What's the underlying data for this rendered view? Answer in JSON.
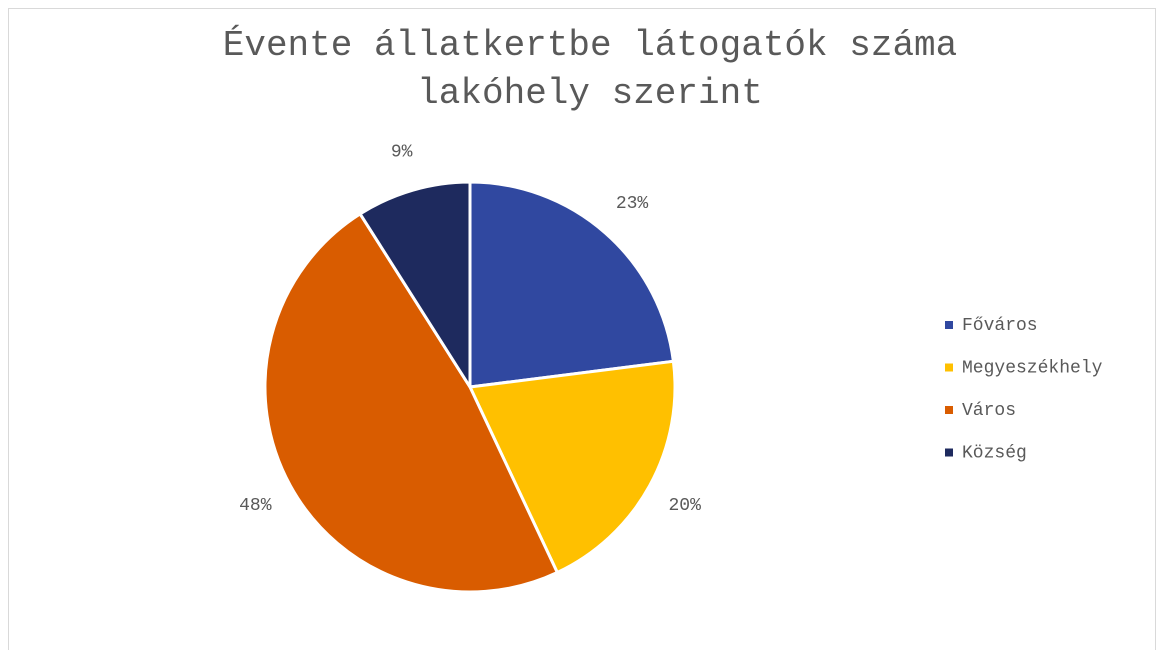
{
  "chart_data": {
    "type": "pie",
    "title": "Évente állatkertbe látogatók száma lakóhely szerint",
    "categories": [
      "Főváros",
      "Megyeszékhely",
      "Város",
      "Község"
    ],
    "values": [
      23,
      20,
      48,
      9
    ],
    "value_labels": [
      "23%",
      "20%",
      "48%",
      "9%"
    ],
    "colors": [
      "#3048a0",
      "#ffc000",
      "#d95c00",
      "#1e2a5e"
    ],
    "legend": "right"
  }
}
